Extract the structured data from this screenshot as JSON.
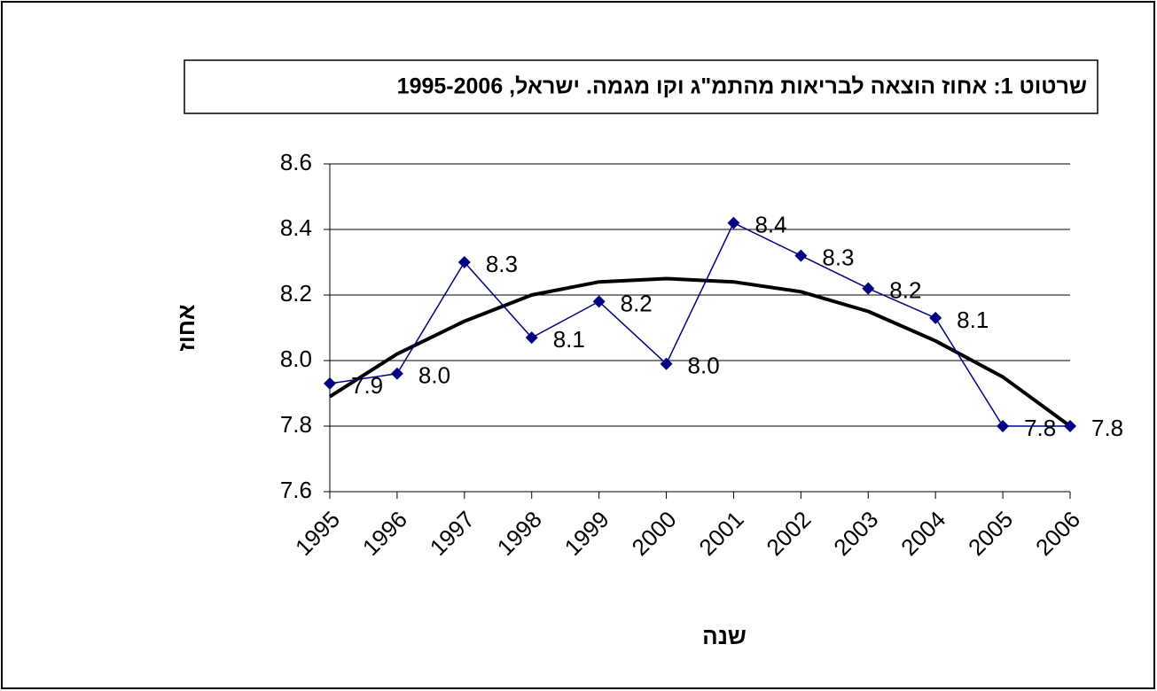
{
  "chart_data": {
    "type": "line",
    "title": "שרטוט 1: אחוז הוצאה לבריאות מהתמ\"ג וקו מגמה. ישראל, 1995-2006",
    "x_label": "שנה",
    "y_label": "אחוז",
    "categories": [
      "1995",
      "1996",
      "1997",
      "1998",
      "1999",
      "2000",
      "2001",
      "2002",
      "2003",
      "2004",
      "2005",
      "2006"
    ],
    "series": [
      {
        "color": "#000080",
        "marker": "diamond",
        "values": [
          7.93,
          7.96,
          8.3,
          8.07,
          8.18,
          7.99,
          8.42,
          8.32,
          8.22,
          8.13,
          7.8,
          7.8
        ],
        "value_labels": [
          "7.9",
          "8.0",
          "8.3",
          "8.1",
          "8.2",
          "8.0",
          "8.4",
          "8.3",
          "8.2",
          "8.1",
          "7.8",
          "7.8"
        ]
      },
      {
        "color": "#000000",
        "values": [
          7.89,
          8.02,
          8.12,
          8.2,
          8.24,
          8.25,
          8.24,
          8.21,
          8.15,
          8.06,
          7.95,
          7.8
        ]
      }
    ],
    "ylim": [
      7.6,
      8.6
    ],
    "yticks": [
      7.6,
      7.8,
      {
        "value": 8,
        "label": "8.0"
      },
      8.2,
      8.4,
      8.6
    ],
    "grid": true
  }
}
